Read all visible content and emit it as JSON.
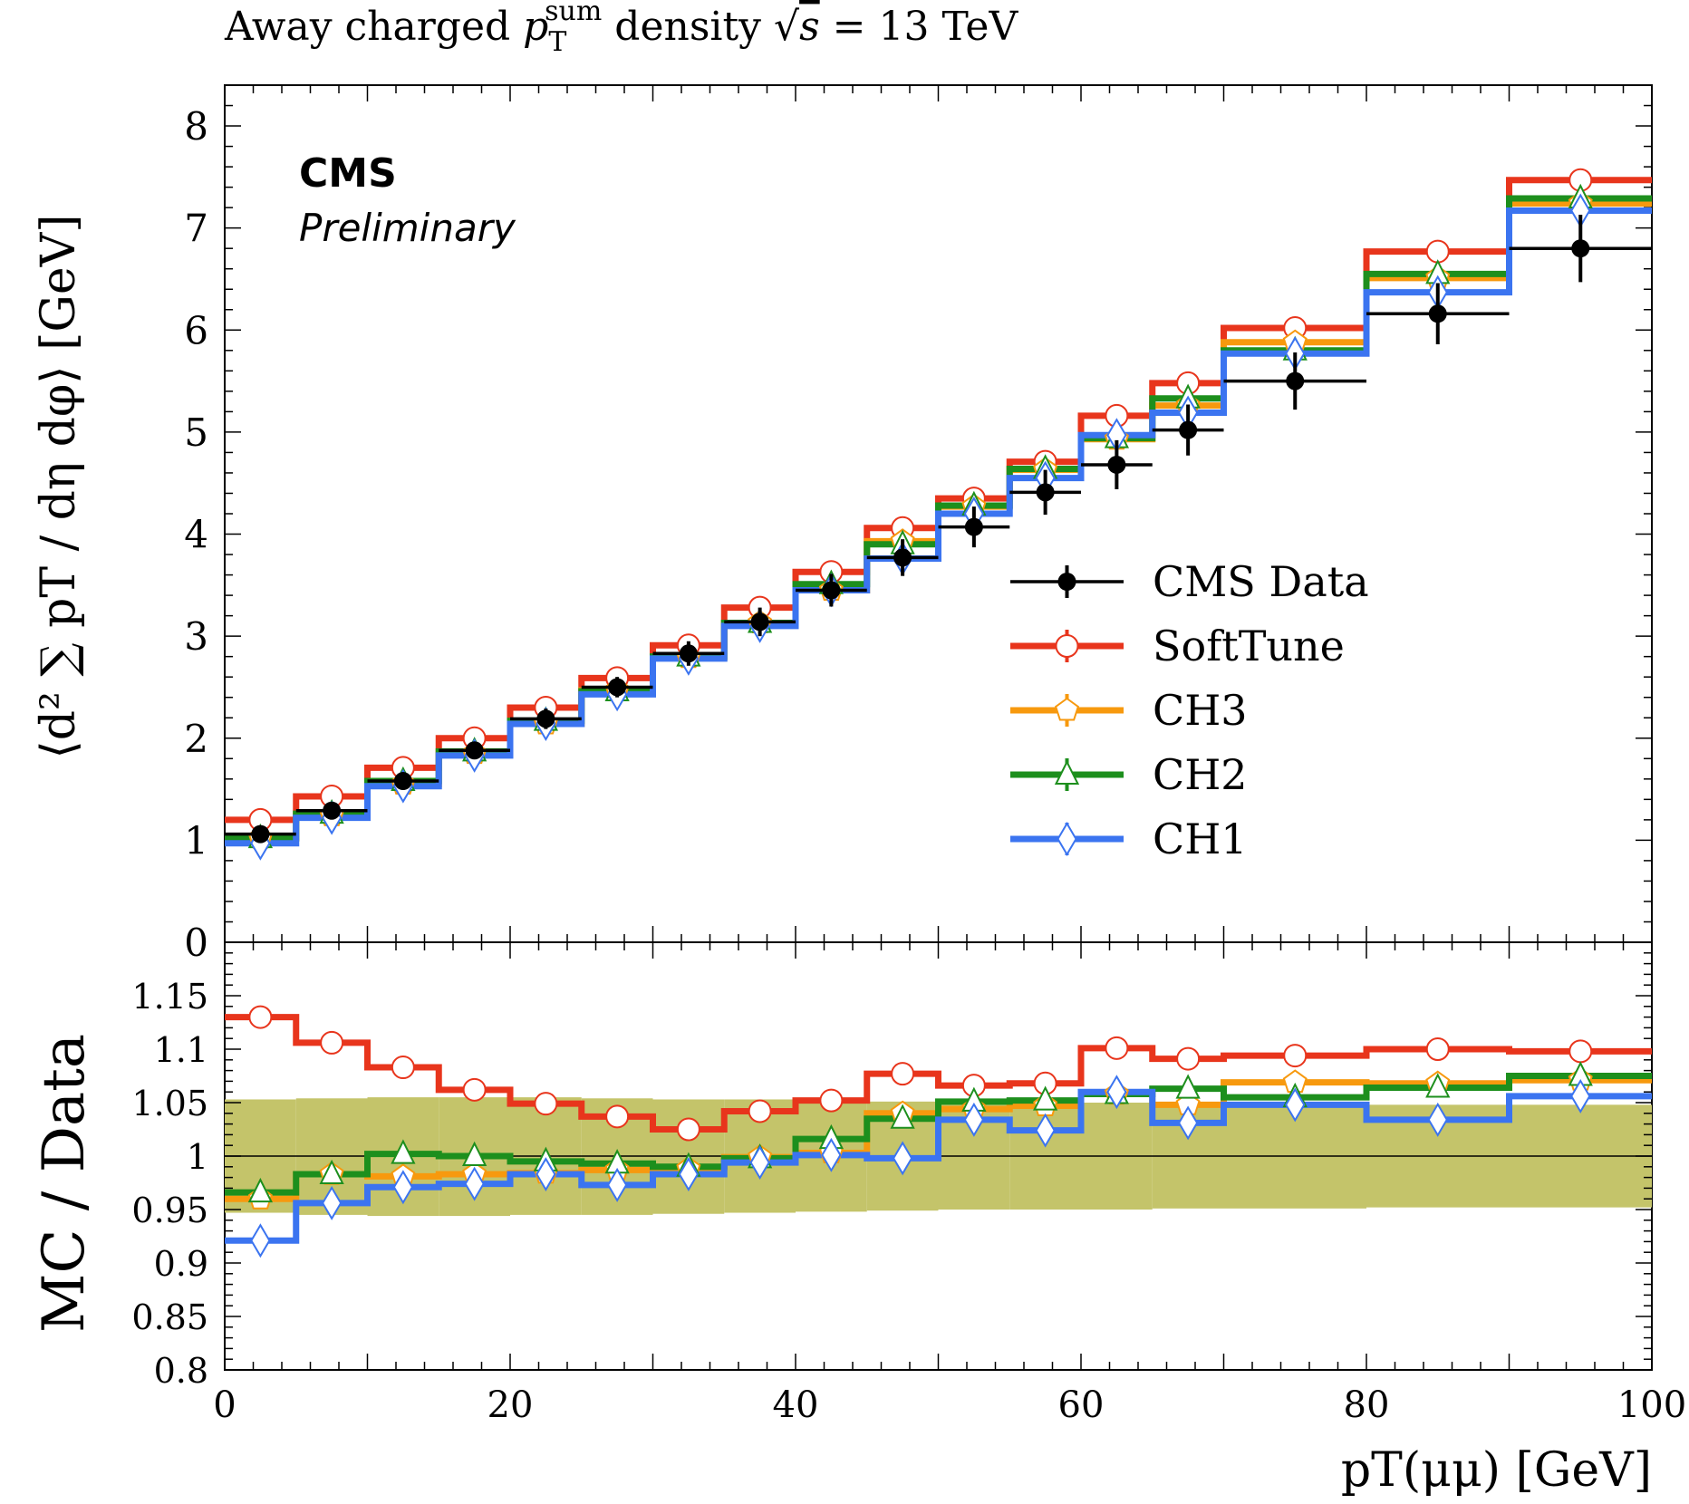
{
  "chart_data": {
    "type": "line",
    "title_parts": {
      "prefix": "Away charged ",
      "p": "p",
      "sub": "T",
      "sup": "sum",
      "mid": " density ",
      "sqrt": "√",
      "s": "s",
      "eq": " = 13 TeV"
    },
    "experiment": "CMS",
    "status": "Preliminary",
    "ylabel_top": "⟨d² ∑ pT / dη dφ⟩ [GeV]",
    "ylabel_bottom": "MC / Data",
    "xlabel": "pT(μμ) [GeV]",
    "xlim": [
      0,
      100
    ],
    "ylim_top": [
      0,
      8.4
    ],
    "ylim_bottom": [
      0.8,
      1.2
    ],
    "x_ticks": [
      "0",
      "20",
      "40",
      "60",
      "80",
      "100"
    ],
    "y_ticks_top": [
      "0",
      "1",
      "2",
      "3",
      "4",
      "5",
      "6",
      "7",
      "8"
    ],
    "y_ticks_bottom": [
      "0.8",
      "0.85",
      "0.9",
      "0.95",
      "1",
      "1.05",
      "1.1",
      "1.15"
    ],
    "bin_edges": [
      0,
      5,
      10,
      15,
      20,
      25,
      30,
      35,
      40,
      45,
      50,
      55,
      60,
      65,
      70,
      80,
      90,
      100
    ],
    "data": {
      "name": "CMS Data",
      "color": "#000000",
      "values": [
        1.06,
        1.29,
        1.58,
        1.88,
        2.19,
        2.5,
        2.83,
        3.14,
        3.45,
        3.77,
        4.07,
        4.41,
        4.68,
        5.02,
        5.5,
        6.16,
        6.8
      ],
      "errors": [
        0.06,
        0.07,
        0.08,
        0.08,
        0.1,
        0.1,
        0.12,
        0.14,
        0.16,
        0.18,
        0.2,
        0.22,
        0.24,
        0.25,
        0.28,
        0.3,
        0.33
      ]
    },
    "data_uncertainty_band": {
      "color": "#c4c46a",
      "low": [
        0.947,
        0.945,
        0.944,
        0.944,
        0.945,
        0.945,
        0.946,
        0.947,
        0.948,
        0.949,
        0.95,
        0.95,
        0.95,
        0.951,
        0.951,
        0.952,
        0.952
      ],
      "high": [
        1.053,
        1.054,
        1.055,
        1.055,
        1.055,
        1.054,
        1.053,
        1.053,
        1.052,
        1.051,
        1.05,
        1.05,
        1.05,
        1.049,
        1.049,
        1.048,
        1.048
      ]
    },
    "series": [
      {
        "name": "SoftTune",
        "color": "#e8351c",
        "marker": "circle",
        "values": [
          1.2,
          1.43,
          1.71,
          2.0,
          2.3,
          2.59,
          2.91,
          3.28,
          3.63,
          4.06,
          4.35,
          4.71,
          5.16,
          5.48,
          6.02,
          6.77,
          7.47
        ],
        "ratio": [
          1.13,
          1.106,
          1.083,
          1.062,
          1.049,
          1.037,
          1.025,
          1.042,
          1.052,
          1.077,
          1.066,
          1.068,
          1.101,
          1.091,
          1.094,
          1.1,
          1.098
        ]
      },
      {
        "name": "CH3",
        "color": "#f7990e",
        "marker": "pentagon",
        "values": [
          1.02,
          1.24,
          1.55,
          1.85,
          2.14,
          2.47,
          2.79,
          3.13,
          3.45,
          3.93,
          4.27,
          4.63,
          4.93,
          5.26,
          5.88,
          6.51,
          7.24
        ],
        "ratio": [
          0.96,
          0.983,
          0.981,
          0.983,
          0.984,
          0.987,
          0.988,
          0.999,
          1.003,
          1.04,
          1.044,
          1.047,
          1.058,
          1.048,
          1.069,
          1.068,
          1.071
        ]
      },
      {
        "name": "CH2",
        "color": "#1d8f1d",
        "marker": "triangle",
        "values": [
          1.02,
          1.26,
          1.58,
          1.87,
          2.17,
          2.46,
          2.8,
          3.13,
          3.51,
          3.9,
          4.28,
          4.64,
          4.94,
          5.33,
          5.8,
          6.55,
          7.29
        ],
        "ratio": [
          0.966,
          0.983,
          1.002,
          1.0,
          0.995,
          0.993,
          0.99,
          0.998,
          1.016,
          1.035,
          1.051,
          1.052,
          1.058,
          1.063,
          1.055,
          1.064,
          1.075
        ]
      },
      {
        "name": "CH1",
        "color": "#3b74f0",
        "marker": "diamond",
        "values": [
          0.97,
          1.22,
          1.53,
          1.83,
          2.14,
          2.43,
          2.78,
          3.1,
          3.45,
          3.76,
          4.2,
          4.55,
          4.97,
          5.19,
          5.77,
          6.37,
          7.17
        ],
        "ratio": [
          0.921,
          0.956,
          0.971,
          0.974,
          0.983,
          0.973,
          0.983,
          0.994,
          1.001,
          0.998,
          1.034,
          1.024,
          1.06,
          1.031,
          1.048,
          1.034,
          1.056
        ]
      }
    ],
    "legend_position": "right",
    "legend": [
      "CMS Data",
      "SoftTune",
      "CH3",
      "CH2",
      "CH1"
    ],
    "reference_line": 1
  }
}
